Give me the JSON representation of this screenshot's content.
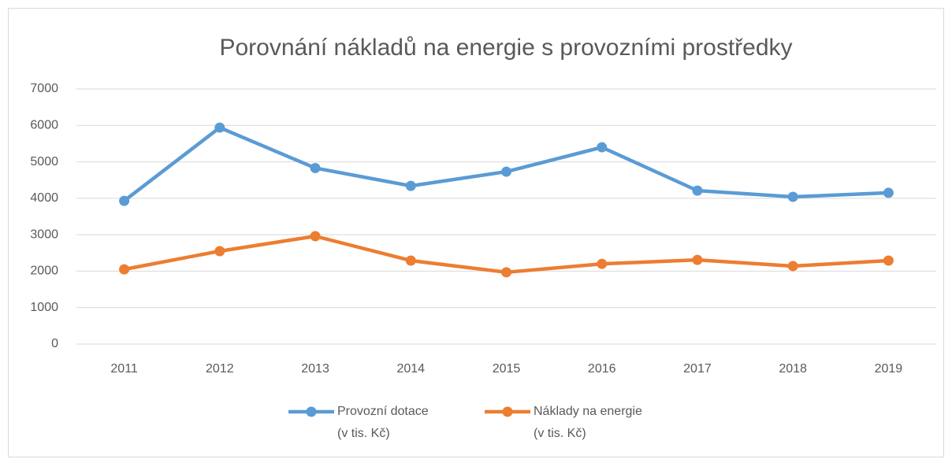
{
  "chart_data": {
    "type": "line",
    "title": "Porovnání nákladů na energie s provozními prostředky",
    "categories": [
      "2011",
      "2012",
      "2013",
      "2014",
      "2015",
      "2016",
      "2017",
      "2018",
      "2019"
    ],
    "series": [
      {
        "name": "Provozní dotace\n(v tis. Kč)",
        "color": "#5b9bd5",
        "values": [
          3930,
          5940,
          4830,
          4340,
          4730,
          5400,
          4210,
          4040,
          4150
        ]
      },
      {
        "name": "Náklady na energie\n(v tis. Kč)",
        "color": "#ed7d31",
        "values": [
          2050,
          2550,
          2960,
          2290,
          1970,
          2200,
          2310,
          2140,
          2290
        ]
      }
    ],
    "ylim": [
      0,
      7000
    ],
    "yticks": [
      0,
      1000,
      2000,
      3000,
      4000,
      5000,
      6000,
      7000
    ],
    "grid": true,
    "legend": "bottom"
  }
}
